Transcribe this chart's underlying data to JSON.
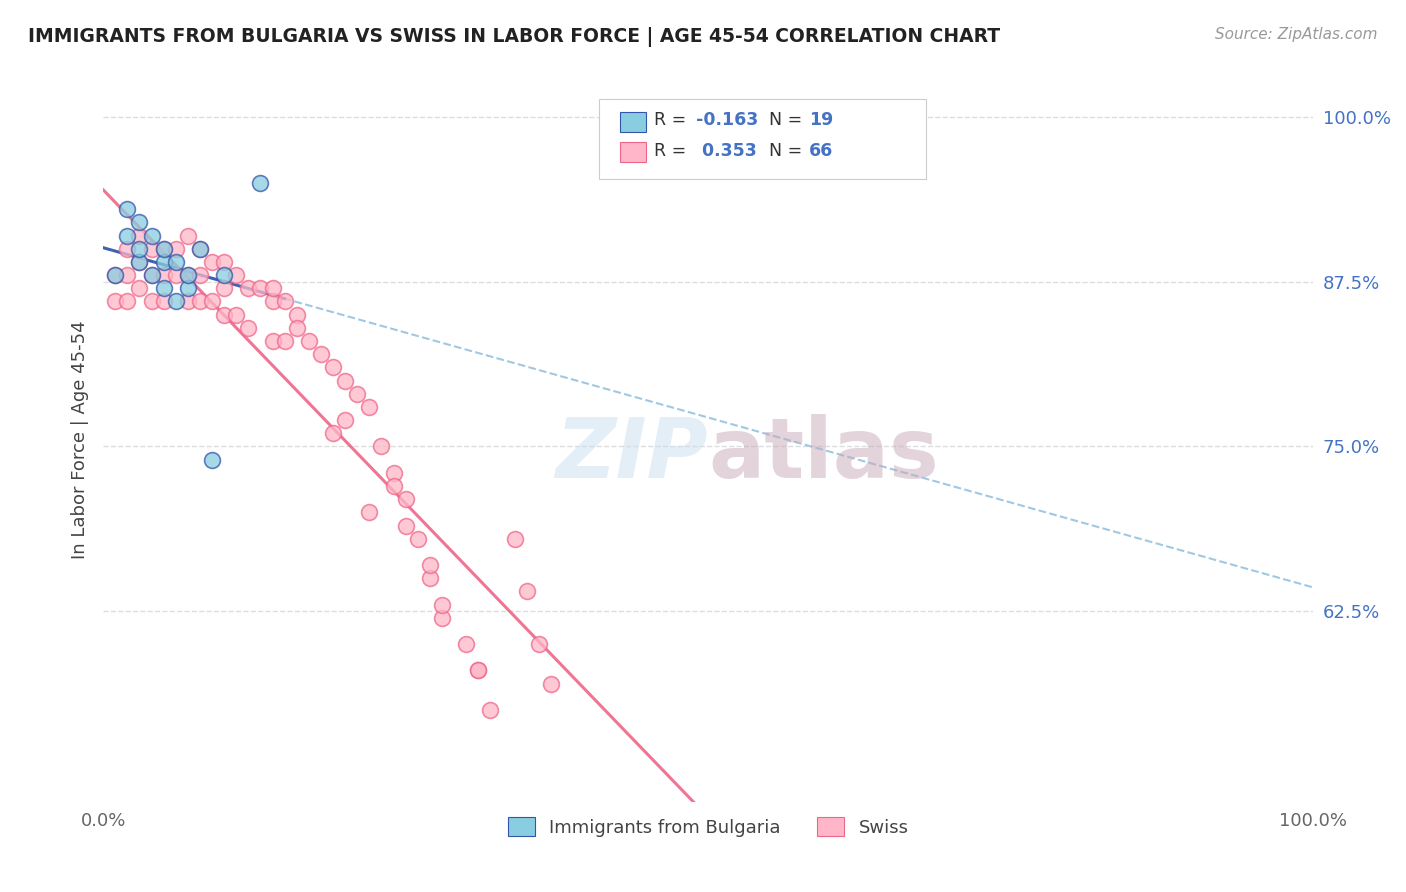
{
  "title": "IMMIGRANTS FROM BULGARIA VS SWISS IN LABOR FORCE | AGE 45-54 CORRELATION CHART",
  "source": "Source: ZipAtlas.com",
  "ylabel": "In Labor Force | Age 45-54",
  "ytick_labels": [
    "100.0%",
    "87.5%",
    "75.0%",
    "62.5%"
  ],
  "ytick_positions": [
    1.0,
    0.875,
    0.75,
    0.625
  ],
  "xlim": [
    0.0,
    1.0
  ],
  "ylim": [
    0.48,
    1.03
  ],
  "color_bulgaria": "#89CDE0",
  "color_swiss": "#FFB6C8",
  "trendline_bulgaria_color": "#3355AA",
  "trendline_swiss_color": "#EE6688",
  "bg_color": "#FFFFFF",
  "grid_color": "#DDDDDD",
  "title_color": "#222222",
  "axis_label_color": "#444444",
  "tick_color": "#666666",
  "source_color": "#999999",
  "bottom_legend_bulgaria": "Immigrants from Bulgaria",
  "bottom_legend_swiss": "Swiss",
  "bulgaria_x": [
    0.01,
    0.02,
    0.02,
    0.03,
    0.03,
    0.03,
    0.04,
    0.04,
    0.05,
    0.05,
    0.05,
    0.06,
    0.06,
    0.07,
    0.07,
    0.08,
    0.09,
    0.1,
    0.13
  ],
  "bulgaria_y": [
    0.88,
    0.93,
    0.91,
    0.89,
    0.92,
    0.9,
    0.91,
    0.88,
    0.89,
    0.87,
    0.9,
    0.89,
    0.86,
    0.87,
    0.88,
    0.9,
    0.74,
    0.88,
    0.95
  ],
  "swiss_x": [
    0.01,
    0.01,
    0.02,
    0.02,
    0.02,
    0.03,
    0.03,
    0.03,
    0.04,
    0.04,
    0.04,
    0.05,
    0.05,
    0.05,
    0.06,
    0.06,
    0.07,
    0.07,
    0.07,
    0.08,
    0.08,
    0.08,
    0.09,
    0.09,
    0.1,
    0.1,
    0.1,
    0.11,
    0.11,
    0.12,
    0.12,
    0.13,
    0.14,
    0.14,
    0.15,
    0.15,
    0.16,
    0.17,
    0.18,
    0.19,
    0.2,
    0.21,
    0.22,
    0.23,
    0.24,
    0.25,
    0.26,
    0.27,
    0.28,
    0.3,
    0.31,
    0.32,
    0.34,
    0.35,
    0.36,
    0.37,
    0.22,
    0.28,
    0.31,
    0.19,
    0.24,
    0.27,
    0.2,
    0.25,
    0.16,
    0.14
  ],
  "swiss_y": [
    0.88,
    0.86,
    0.9,
    0.88,
    0.86,
    0.91,
    0.89,
    0.87,
    0.9,
    0.88,
    0.86,
    0.9,
    0.88,
    0.86,
    0.9,
    0.88,
    0.91,
    0.88,
    0.86,
    0.9,
    0.88,
    0.86,
    0.89,
    0.86,
    0.89,
    0.87,
    0.85,
    0.88,
    0.85,
    0.87,
    0.84,
    0.87,
    0.86,
    0.83,
    0.86,
    0.83,
    0.85,
    0.83,
    0.82,
    0.81,
    0.8,
    0.79,
    0.78,
    0.75,
    0.73,
    0.71,
    0.68,
    0.65,
    0.62,
    0.6,
    0.58,
    0.55,
    0.68,
    0.64,
    0.6,
    0.57,
    0.7,
    0.63,
    0.58,
    0.76,
    0.72,
    0.66,
    0.77,
    0.69,
    0.84,
    0.87
  ]
}
